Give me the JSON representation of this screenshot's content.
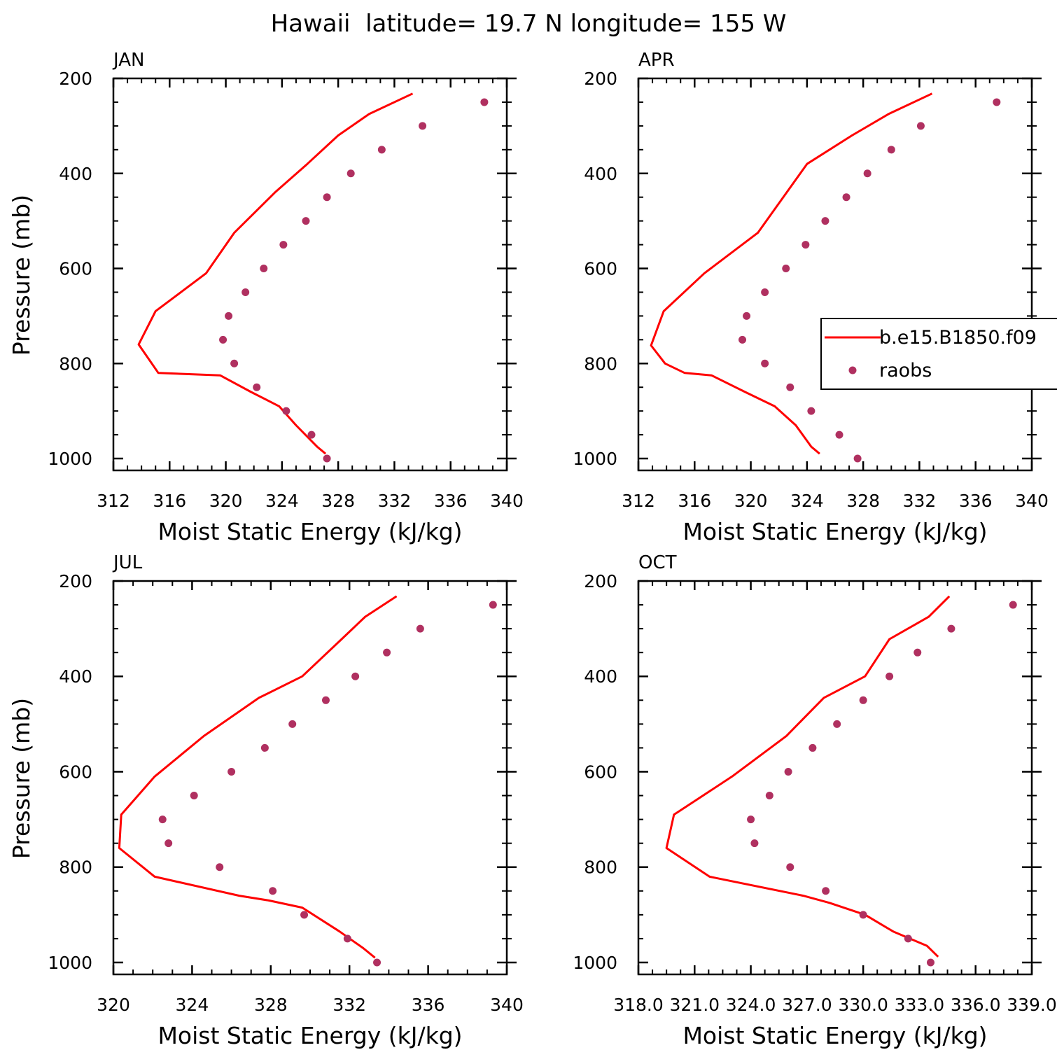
{
  "figure": {
    "title": "Hawaii  latitude= 19.7 N longitude= 155 W"
  },
  "chart_data": [
    {
      "type": "line",
      "panel_label": "JAN",
      "xlabel": "Moist Static Energy (kJ/kg)",
      "ylabel": "Pressure (mb)",
      "xlim": [
        312,
        340
      ],
      "x_ticks": [
        312,
        316,
        320,
        324,
        328,
        332,
        336,
        340
      ],
      "x_tick_labels": [
        "312",
        "316",
        "320",
        "324",
        "328",
        "332",
        "336",
        "340"
      ],
      "ylim": [
        1025,
        200
      ],
      "y_ticks": [
        200,
        400,
        600,
        800,
        1000
      ],
      "y_tick_labels": [
        "200",
        "400",
        "600",
        "800",
        "1000"
      ],
      "series": [
        {
          "name": "b.e15.B1850.f09",
          "kind": "line",
          "color": "#ff0000",
          "x": [
            327.1,
            326.5,
            325.0,
            323.8,
            321.8,
            319.6,
            315.2,
            313.8,
            315.0,
            318.6,
            320.6,
            323.5,
            325.8,
            328.0,
            330.2,
            333.3
          ],
          "y": [
            990,
            975,
            930,
            890,
            860,
            825,
            820,
            760,
            690,
            610,
            525,
            440,
            380,
            320,
            275,
            232
          ]
        },
        {
          "name": "raobs",
          "kind": "scatter",
          "color": "#b03060",
          "x": [
            327.2,
            326.1,
            324.3,
            322.2,
            320.6,
            319.8,
            320.2,
            321.4,
            322.7,
            324.1,
            325.7,
            327.2,
            328.9,
            331.1,
            334.0,
            338.4
          ],
          "y": [
            1000,
            950,
            900,
            850,
            800,
            750,
            700,
            650,
            600,
            550,
            500,
            450,
            400,
            350,
            300,
            250
          ]
        }
      ]
    },
    {
      "type": "line",
      "panel_label": "APR",
      "xlabel": "Moist Static Energy (kJ/kg)",
      "xlim": [
        312,
        340
      ],
      "x_ticks": [
        312,
        316,
        320,
        324,
        328,
        332,
        336,
        340
      ],
      "x_tick_labels": [
        "312",
        "316",
        "320",
        "324",
        "328",
        "332",
        "336",
        "340"
      ],
      "ylim": [
        1025,
        200
      ],
      "y_ticks": [
        200,
        400,
        600,
        800,
        1000
      ],
      "y_tick_labels": [
        "200",
        "400",
        "600",
        "800",
        "1000"
      ],
      "legend": {
        "position": "right",
        "entries": [
          "b.e15.B1850.f09",
          "raobs"
        ]
      },
      "series": [
        {
          "name": "b.e15.B1850.f09",
          "kind": "line",
          "color": "#ff0000",
          "x": [
            324.9,
            324.3,
            323.2,
            321.7,
            319.6,
            317.2,
            315.3,
            313.9,
            312.9,
            313.8,
            316.7,
            320.5,
            324.0,
            327.2,
            329.8,
            332.9
          ],
          "y": [
            990,
            975,
            930,
            890,
            860,
            825,
            820,
            800,
            762,
            690,
            610,
            525,
            380,
            320,
            275,
            232
          ]
        },
        {
          "name": "raobs",
          "kind": "scatter",
          "color": "#b03060",
          "x": [
            327.6,
            326.3,
            324.3,
            322.8,
            321.0,
            319.4,
            319.7,
            321.0,
            322.5,
            323.9,
            325.3,
            326.8,
            328.3,
            330.0,
            332.1,
            337.5
          ],
          "y": [
            1000,
            950,
            900,
            850,
            800,
            750,
            700,
            650,
            600,
            550,
            500,
            450,
            400,
            350,
            300,
            250
          ]
        }
      ]
    },
    {
      "type": "line",
      "panel_label": "JUL",
      "xlabel": "Moist Static Energy (kJ/kg)",
      "ylabel": "Pressure (mb)",
      "xlim": [
        320,
        340
      ],
      "x_ticks": [
        320,
        324,
        328,
        332,
        336,
        340
      ],
      "x_tick_labels": [
        "320",
        "324",
        "328",
        "332",
        "336",
        "340"
      ],
      "ylim": [
        1025,
        200
      ],
      "y_ticks": [
        200,
        400,
        600,
        800,
        1000
      ],
      "y_tick_labels": [
        "200",
        "400",
        "600",
        "800",
        "1000"
      ],
      "series": [
        {
          "name": "b.e15.B1850.f09",
          "kind": "line",
          "color": "#ff0000",
          "x": [
            333.3,
            332.7,
            331.5,
            329.6,
            327.9,
            326.4,
            322.1,
            320.3,
            320.4,
            322.1,
            324.6,
            327.4,
            329.6,
            331.6,
            332.8,
            334.4
          ],
          "y": [
            990,
            970,
            935,
            885,
            870,
            860,
            820,
            760,
            690,
            610,
            525,
            445,
            400,
            322,
            275,
            232
          ]
        },
        {
          "name": "raobs",
          "kind": "scatter",
          "color": "#b03060",
          "x": [
            333.4,
            331.9,
            329.7,
            328.1,
            325.4,
            322.8,
            322.5,
            324.1,
            326.0,
            327.7,
            329.1,
            330.8,
            332.3,
            333.9,
            335.6,
            339.3
          ],
          "y": [
            1000,
            950,
            900,
            850,
            800,
            750,
            700,
            650,
            600,
            550,
            500,
            450,
            400,
            350,
            300,
            250
          ]
        }
      ]
    },
    {
      "type": "line",
      "panel_label": "OCT",
      "xlabel": "Moist Static Energy (kJ/kg)",
      "xlim": [
        318.0,
        339.0
      ],
      "x_ticks": [
        318.0,
        321.0,
        324.0,
        327.0,
        330.0,
        333.0,
        336.0,
        339.0
      ],
      "x_tick_labels": [
        "318.0",
        "321.0",
        "324.0",
        "327.0",
        "330.0",
        "333.0",
        "336.0",
        "339.0"
      ],
      "ylim": [
        1025,
        200
      ],
      "y_ticks": [
        200,
        400,
        600,
        800,
        1000
      ],
      "y_tick_labels": [
        "200",
        "400",
        "600",
        "800",
        "1000"
      ],
      "series": [
        {
          "name": "b.e15.B1850.f09",
          "kind": "line",
          "color": "#ff0000",
          "x": [
            334.0,
            333.4,
            331.6,
            330.1,
            328.2,
            326.8,
            321.8,
            319.5,
            319.9,
            323.0,
            325.9,
            327.9,
            330.1,
            331.4,
            333.5,
            334.6
          ],
          "y": [
            988,
            965,
            935,
            900,
            875,
            860,
            820,
            760,
            690,
            610,
            525,
            445,
            400,
            322,
            275,
            232
          ]
        },
        {
          "name": "raobs",
          "kind": "scatter",
          "color": "#b03060",
          "x": [
            333.6,
            332.4,
            330.0,
            328.0,
            326.1,
            324.2,
            324.0,
            325.0,
            326.0,
            327.3,
            328.6,
            330.0,
            331.4,
            332.9,
            334.7,
            338.0
          ],
          "y": [
            1000,
            950,
            900,
            850,
            800,
            750,
            700,
            650,
            600,
            550,
            500,
            450,
            400,
            350,
            300,
            250
          ]
        }
      ]
    }
  ]
}
